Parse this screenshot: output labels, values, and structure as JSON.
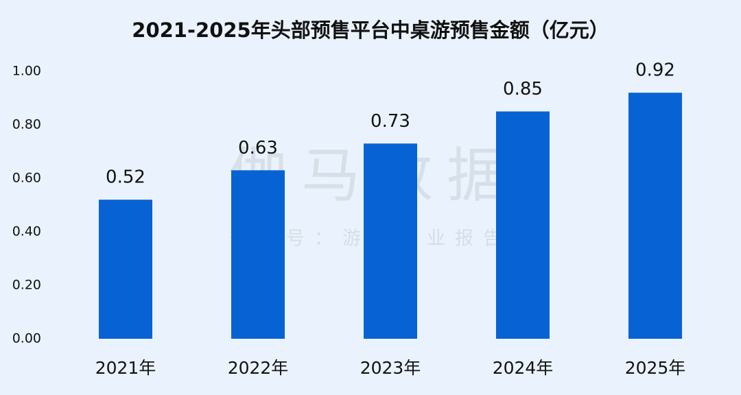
{
  "chart_data": {
    "type": "bar",
    "title": "2021-2025年头部预售平台中桌游预售金额（亿元）",
    "watermark": "伽马数据",
    "watermark_subtitle": "微信号：游戏产业报告",
    "categories": [
      "2021年",
      "2022年",
      "2023年",
      "2024年",
      "2025年"
    ],
    "values": [
      0.52,
      0.63,
      0.73,
      0.85,
      0.92
    ],
    "color": "#0763d3",
    "ylim": [
      0,
      1
    ],
    "yticks": [
      {
        "value": 0,
        "label": "0.00"
      },
      {
        "value": 0.2,
        "label": "0.20"
      },
      {
        "value": 0.4,
        "label": "0.40"
      },
      {
        "value": 0.6,
        "label": "0.60"
      },
      {
        "value": 0.8,
        "label": "0.80"
      },
      {
        "value": 1,
        "label": "1.00"
      }
    ],
    "grid": false
  }
}
